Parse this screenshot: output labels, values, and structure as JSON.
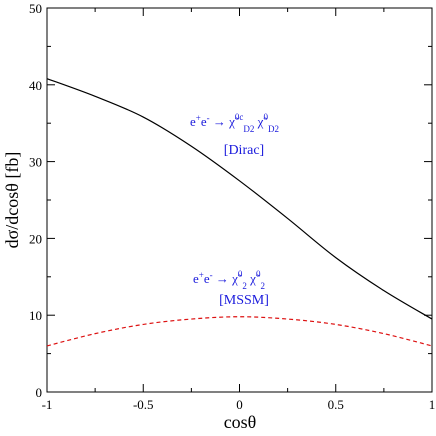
{
  "chart_data": {
    "type": "line",
    "xlabel": "cosθ",
    "ylabel": "dσ/dcosθ [fb]",
    "xlim": [
      -1,
      1
    ],
    "ylim": [
      0,
      50
    ],
    "x_ticks": [
      "-1",
      "-0.5",
      "0",
      "0.5",
      "1"
    ],
    "y_ticks": [
      "0",
      "10",
      "20",
      "30",
      "40",
      "50"
    ],
    "grid": false,
    "series": [
      {
        "name": "[Dirac]",
        "process": "e⁺e⁻ → χ̃⁰ᶜ_D2 χ̃⁰_D2",
        "color": "#000000",
        "style": "solid",
        "x": [
          -1,
          -0.75,
          -0.5,
          -0.25,
          0,
          0.25,
          0.5,
          0.75,
          1
        ],
        "y": [
          40.8,
          38.5,
          35.8,
          32.0,
          27.5,
          22.6,
          17.5,
          13.2,
          9.5
        ]
      },
      {
        "name": "[MSSM]",
        "process": "e⁺e⁻ → χ̃⁰₂ χ̃⁰₂",
        "color": "#dd1111",
        "style": "dashed",
        "x": [
          -1,
          -0.75,
          -0.5,
          -0.25,
          0,
          0.25,
          0.5,
          0.75,
          1
        ],
        "y": [
          6.0,
          7.6,
          8.8,
          9.5,
          9.8,
          9.5,
          8.8,
          7.6,
          6.0
        ]
      }
    ],
    "annotations": {
      "dirac_label": "[Dirac]",
      "mssm_label": "[MSSM]"
    }
  }
}
